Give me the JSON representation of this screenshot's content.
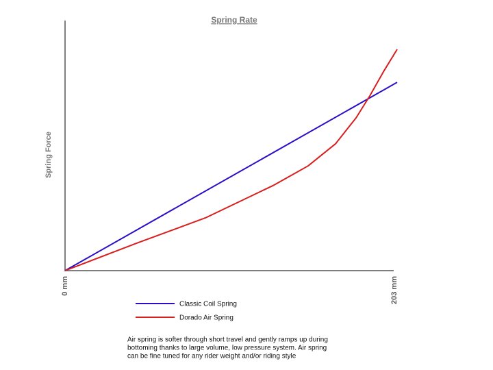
{
  "chart_data": {
    "type": "line",
    "title": "Spring Rate",
    "y_label": "Spring Force",
    "xlim": [
      0,
      203
    ],
    "xticks": [
      {
        "value": 0,
        "label": "0 mm"
      },
      {
        "value": 203,
        "label": "203 mm"
      }
    ],
    "ylim": [
      0,
      100
    ],
    "series": [
      {
        "name": "Classic Coil Spring",
        "color": "#2a0fc8",
        "x": [
          0,
          203
        ],
        "values": [
          0,
          75.3
        ]
      },
      {
        "name": "Dorado Air Spring",
        "color": "#d91e1e",
        "x": [
          0,
          43.9,
          85.8,
          127.7,
          148.6,
          165.3,
          177.9,
          186.3,
          194.6,
          203
        ],
        "values": [
          0,
          11,
          21.1,
          34.2,
          41.9,
          50.7,
          61.1,
          69.9,
          79.5,
          88.5
        ]
      }
    ],
    "note": [
      "Air spring is softer through short travel and gently ramps up during",
      "bottoming thanks to large volume, low pressure system. Air spring",
      "can be fine tuned for any rider weight and/or riding style"
    ]
  }
}
